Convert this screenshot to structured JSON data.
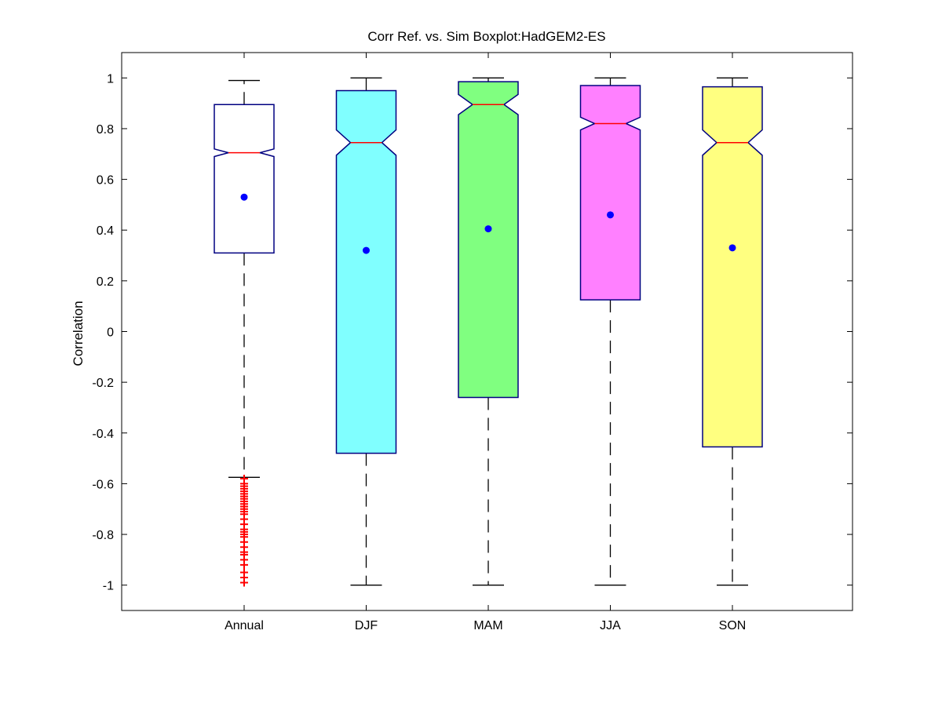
{
  "chart_data": {
    "type": "boxplot",
    "title": "Corr Ref. vs. Sim Boxplot:HadGEM2-ES",
    "xlabel": "",
    "ylabel": "Correlation",
    "ylim": [
      -1.1,
      1.1
    ],
    "yticks": [
      1,
      0.8,
      0.6,
      0.4,
      0.2,
      0,
      -0.2,
      -0.4,
      -0.6,
      -0.8,
      -1
    ],
    "ytick_labels": [
      "1",
      "0.8",
      "0.6",
      "0.4",
      "0.2",
      "0",
      "-0.2",
      "-0.4",
      "-0.6",
      "-0.8",
      "-1"
    ],
    "categories": [
      "Annual",
      "DJF",
      "MAM",
      "JJA",
      "SON"
    ],
    "notched": true,
    "grid": false,
    "colors": {
      "box_edge": "#000080",
      "median": "#ff0000",
      "mean_marker": "#0000ff",
      "outlier": "#ff0000",
      "whisker": "#000000"
    },
    "series": [
      {
        "category": "Annual",
        "fill": "#ffffff",
        "q1": 0.31,
        "median": 0.705,
        "q3": 0.895,
        "notch_low": 0.69,
        "notch_high": 0.72,
        "whisker_low": -0.575,
        "whisker_high": 0.99,
        "mean": 0.53,
        "outliers": [
          -0.58,
          -0.6,
          -0.61,
          -0.62,
          -0.63,
          -0.64,
          -0.65,
          -0.66,
          -0.67,
          -0.68,
          -0.69,
          -0.7,
          -0.71,
          -0.72,
          -0.74,
          -0.76,
          -0.78,
          -0.79,
          -0.8,
          -0.81,
          -0.83,
          -0.85,
          -0.87,
          -0.88,
          -0.9,
          -0.92,
          -0.95,
          -0.97,
          -0.99
        ]
      },
      {
        "category": "DJF",
        "fill": "#80ffff",
        "q1": -0.48,
        "median": 0.745,
        "q3": 0.95,
        "notch_low": 0.695,
        "notch_high": 0.795,
        "whisker_low": -1.0,
        "whisker_high": 1.0,
        "mean": 0.32,
        "outliers": []
      },
      {
        "category": "MAM",
        "fill": "#80ff80",
        "q1": -0.26,
        "median": 0.895,
        "q3": 0.985,
        "notch_low": 0.855,
        "notch_high": 0.935,
        "whisker_low": -1.0,
        "whisker_high": 1.0,
        "mean": 0.405,
        "outliers": []
      },
      {
        "category": "JJA",
        "fill": "#ff80ff",
        "q1": 0.125,
        "median": 0.82,
        "q3": 0.97,
        "notch_low": 0.795,
        "notch_high": 0.845,
        "whisker_low": -1.0,
        "whisker_high": 1.0,
        "mean": 0.46,
        "outliers": []
      },
      {
        "category": "SON",
        "fill": "#ffff80",
        "q1": -0.455,
        "median": 0.745,
        "q3": 0.965,
        "notch_low": 0.695,
        "notch_high": 0.795,
        "whisker_low": -1.0,
        "whisker_high": 1.0,
        "mean": 0.33,
        "outliers": []
      }
    ]
  }
}
